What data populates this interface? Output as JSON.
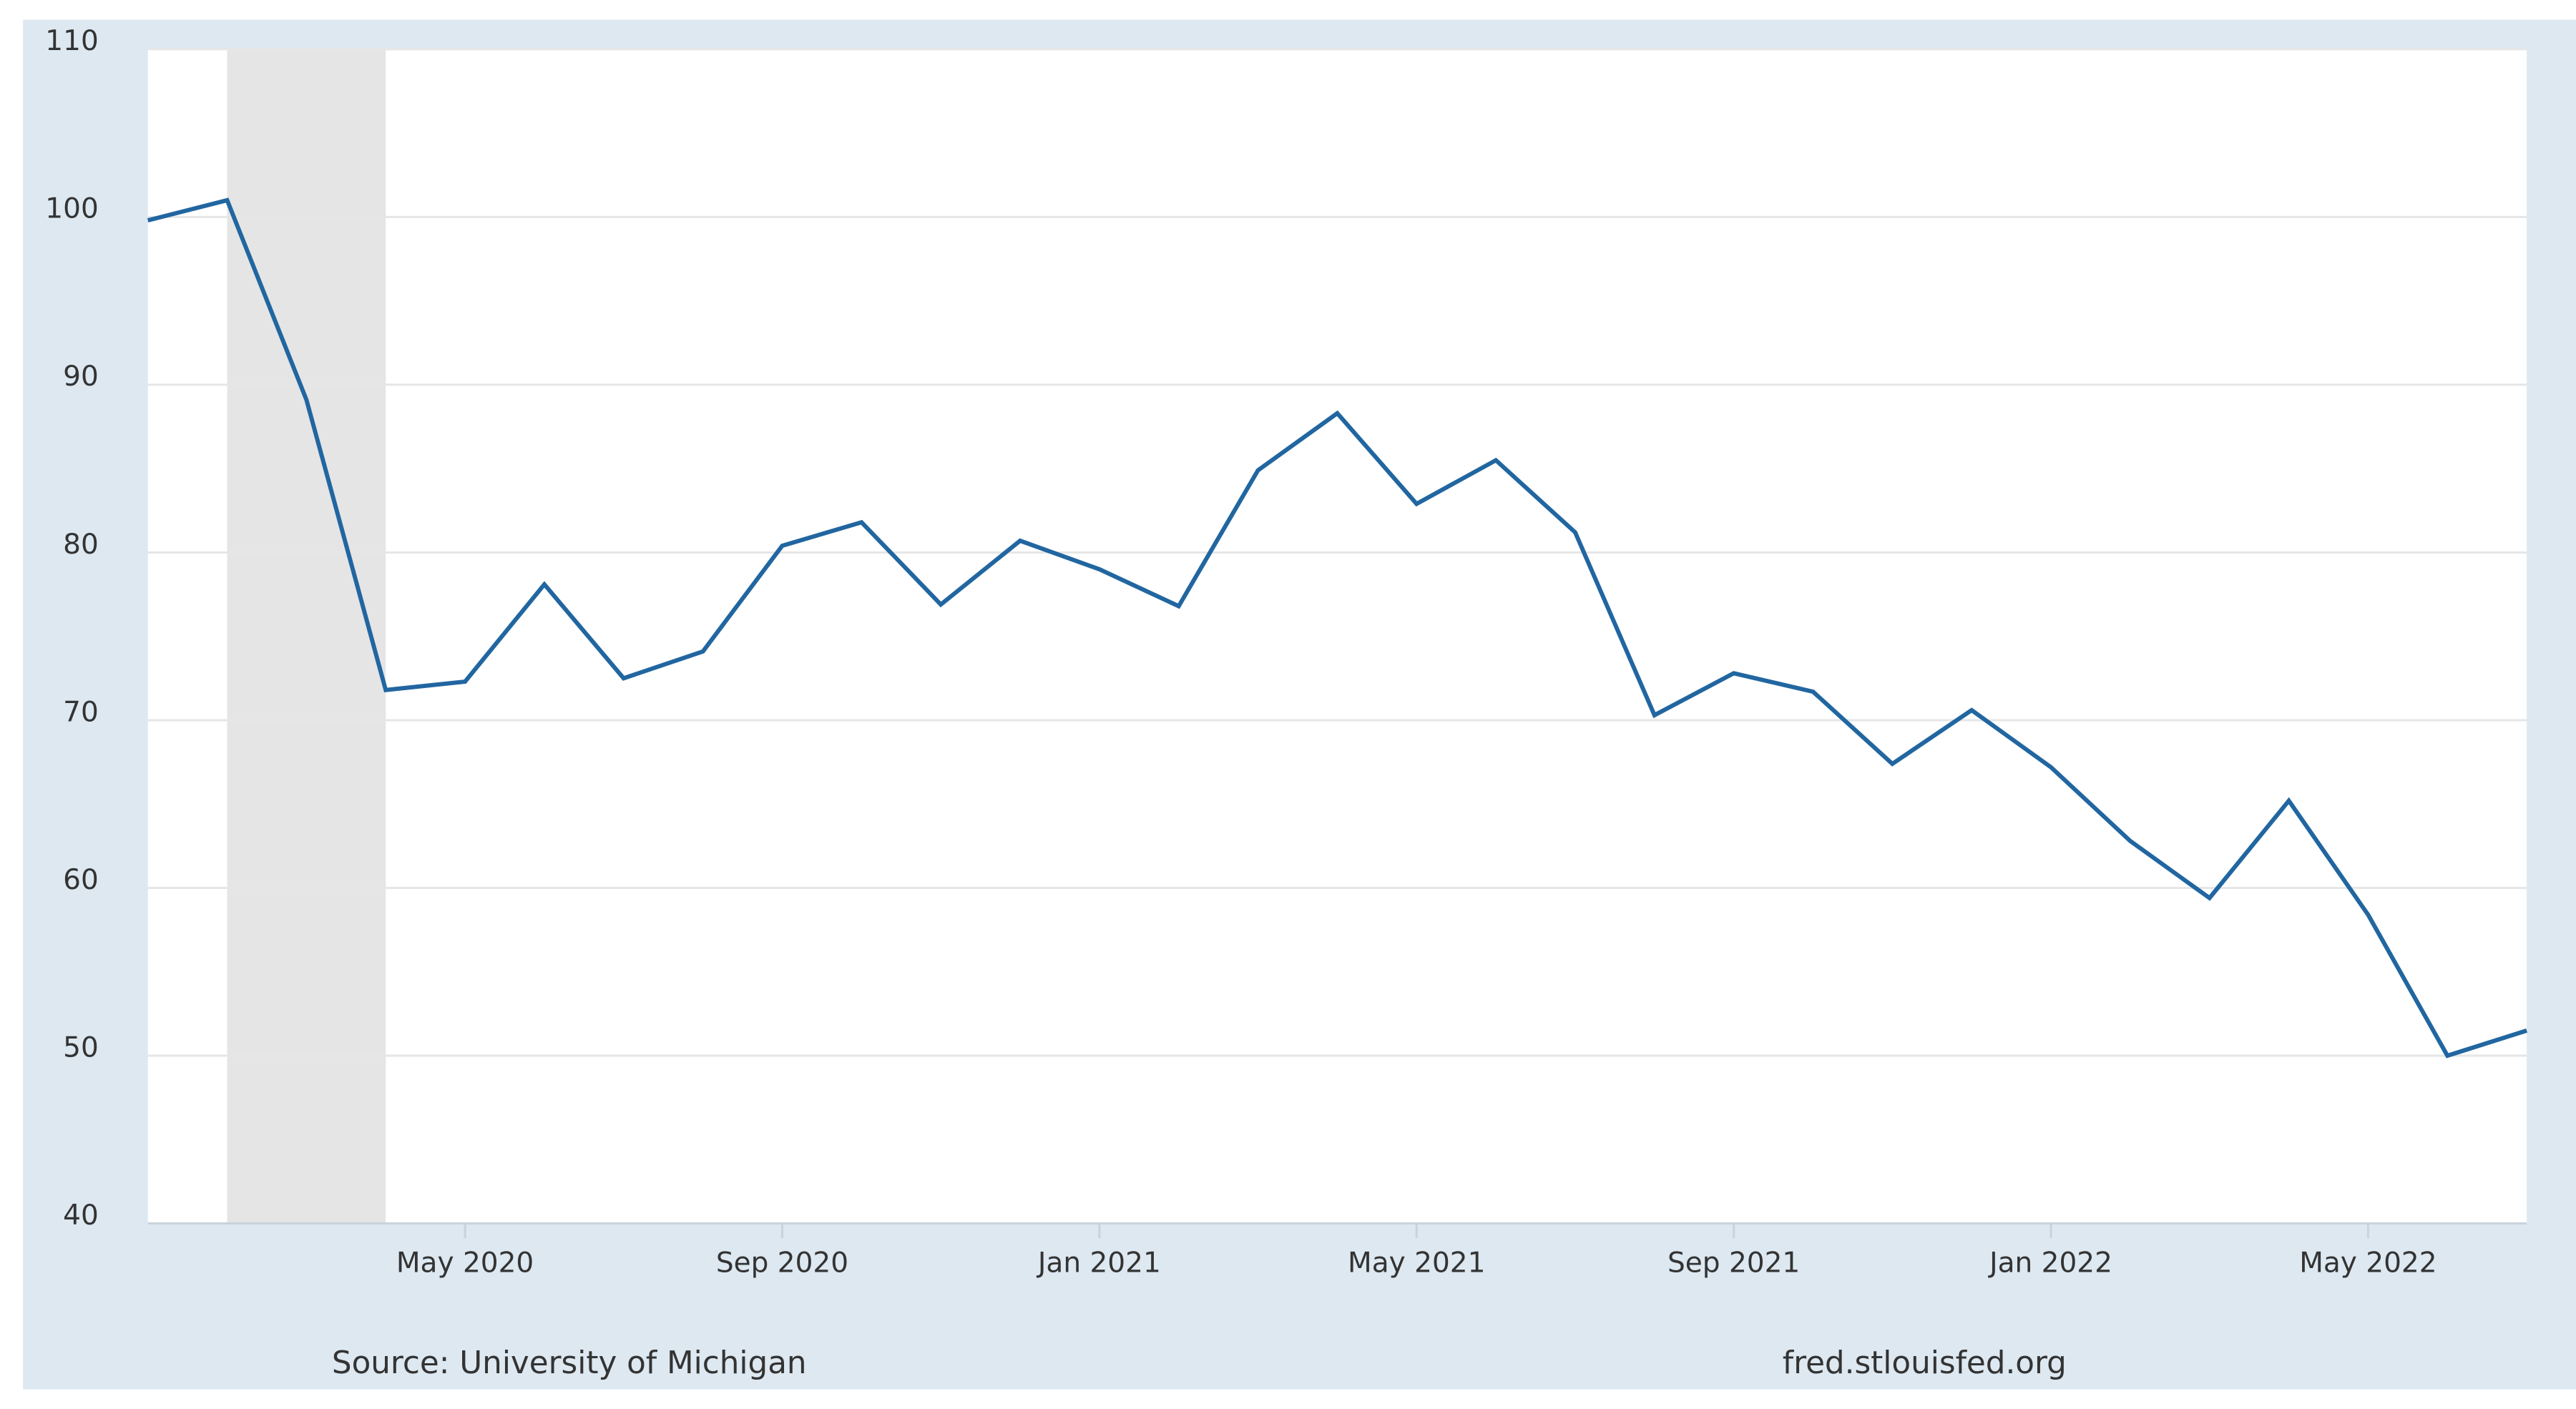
{
  "chart_data": {
    "type": "line",
    "source": "Source: University of Michigan",
    "site": "fred.stlouisfed.org",
    "x": [
      "2020-01",
      "2020-02",
      "2020-03",
      "2020-04",
      "2020-05",
      "2020-06",
      "2020-07",
      "2020-08",
      "2020-09",
      "2020-10",
      "2020-11",
      "2020-12",
      "2021-01",
      "2021-02",
      "2021-03",
      "2021-04",
      "2021-05",
      "2021-06",
      "2021-07",
      "2021-08",
      "2021-09",
      "2021-10",
      "2021-11",
      "2021-12",
      "2022-01",
      "2022-02",
      "2022-03",
      "2022-04",
      "2022-05",
      "2022-06",
      "2022-07"
    ],
    "series": [
      {
        "color": "#2166a0",
        "values": [
          99.8,
          101.0,
          89.1,
          71.8,
          72.3,
          78.1,
          72.5,
          74.1,
          80.4,
          81.8,
          76.9,
          80.7,
          79.0,
          76.8,
          84.9,
          88.3,
          82.9,
          85.5,
          81.2,
          70.3,
          72.8,
          71.7,
          67.4,
          70.6,
          67.2,
          62.8,
          59.4,
          65.2,
          58.4,
          50.0,
          51.5
        ]
      }
    ],
    "xlim": [
      "2020-01",
      "2022-07"
    ],
    "xticks": [
      {
        "value": "2020-05",
        "label": "May 2020"
      },
      {
        "value": "2020-09",
        "label": "Sep 2020"
      },
      {
        "value": "2021-01",
        "label": "Jan 2021"
      },
      {
        "value": "2021-05",
        "label": "May 2021"
      },
      {
        "value": "2021-09",
        "label": "Sep 2021"
      },
      {
        "value": "2022-01",
        "label": "Jan 2022"
      },
      {
        "value": "2022-05",
        "label": "May 2022"
      }
    ],
    "ylim": [
      40,
      110
    ],
    "yticks": [
      40,
      50,
      60,
      70,
      80,
      90,
      100,
      110
    ],
    "recession": [
      "2020-02",
      "2020-04"
    ],
    "grid": true
  }
}
